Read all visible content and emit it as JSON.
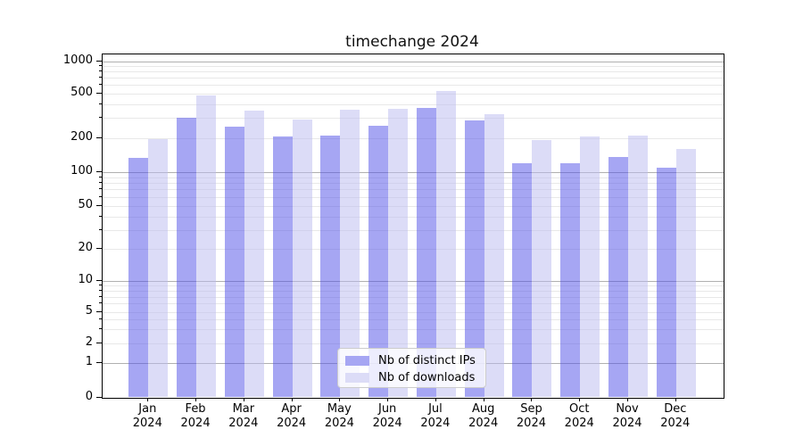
{
  "chart_data": {
    "type": "bar",
    "title": "timechange 2024",
    "categories": [
      "Jan",
      "Feb",
      "Mar",
      "Apr",
      "May",
      "Jun",
      "Jul",
      "Aug",
      "Sep",
      "Oct",
      "Nov",
      "Dec"
    ],
    "year_label": "2024",
    "series": [
      {
        "name": "Nb of distinct IPs",
        "color": "rgba(77,77,231,0.5)",
        "color_hex_on_white": "#a6a6f3",
        "values": [
          132,
          300,
          250,
          205,
          210,
          255,
          370,
          287,
          119,
          120,
          135,
          109
        ]
      },
      {
        "name": "Nb of downloads",
        "color": "rgba(185,185,239,0.5)",
        "color_hex_on_white": "#dcdcf7",
        "values": [
          193,
          475,
          348,
          290,
          356,
          360,
          525,
          327,
          190,
          205,
          209,
          159
        ]
      }
    ],
    "y_axis": {
      "scale": "symlog",
      "tick_values": [
        0,
        1,
        2,
        5,
        10,
        20,
        50,
        100,
        200,
        500,
        1000
      ],
      "major_tick_values": [
        1,
        10,
        100,
        1000
      ],
      "minor_grid_values": [
        3,
        4,
        6,
        7,
        8,
        9,
        30,
        40,
        60,
        70,
        80,
        90,
        300,
        400,
        600,
        700,
        800,
        900
      ],
      "ylim": [
        0,
        1200
      ]
    },
    "grid": true,
    "legend_position": "lower center",
    "grid_major_color": "#b0b0b0",
    "grid_minor_color": "#e8e8e8"
  }
}
